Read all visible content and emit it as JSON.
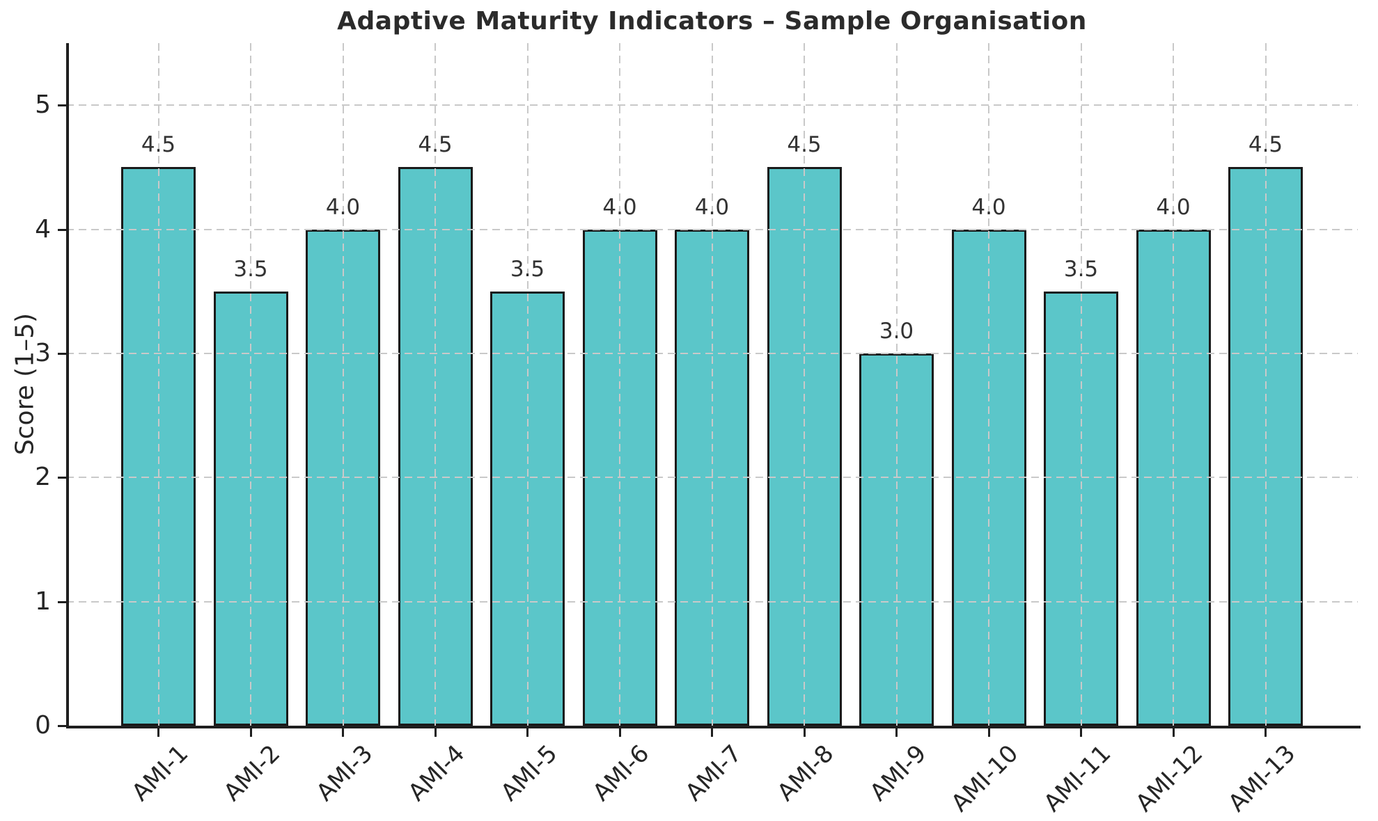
{
  "chart_data": {
    "type": "bar",
    "title": "Adaptive Maturity Indicators – Sample Organisation",
    "xlabel": "",
    "ylabel": "Score (1–5)",
    "categories": [
      "AMI-1",
      "AMI-2",
      "AMI-3",
      "AMI-4",
      "AMI-5",
      "AMI-6",
      "AMI-7",
      "AMI-8",
      "AMI-9",
      "AMI-10",
      "AMI-11",
      "AMI-12",
      "AMI-13"
    ],
    "values": [
      4.5,
      3.5,
      4.0,
      4.5,
      3.5,
      4.0,
      4.0,
      4.5,
      3.0,
      4.0,
      3.5,
      4.0,
      4.5
    ],
    "value_labels": [
      "4.5",
      "3.5",
      "4.0",
      "4.5",
      "3.5",
      "4.0",
      "4.0",
      "4.5",
      "3.0",
      "4.0",
      "3.5",
      "4.0",
      "4.5"
    ],
    "ylim": [
      0,
      5.5
    ],
    "yticks": [
      0,
      1,
      2,
      3,
      4,
      5
    ],
    "ytick_labels": [
      "0",
      "1",
      "2",
      "3",
      "4",
      "5"
    ],
    "xtick_rotation_deg": 45,
    "grid": {
      "visible": true,
      "axis": "both",
      "style": "dashed",
      "drawn_over_bars": true
    },
    "legend": {
      "visible": false
    },
    "colors": {
      "bar_fill": "#5bc6c9",
      "bar_edge": "#1a1a1a",
      "grid": "#c9c9c9",
      "spine": "#1f1f1f",
      "text": "#262626",
      "title_text": "#2b2b2b",
      "background": "#ffffff"
    }
  }
}
